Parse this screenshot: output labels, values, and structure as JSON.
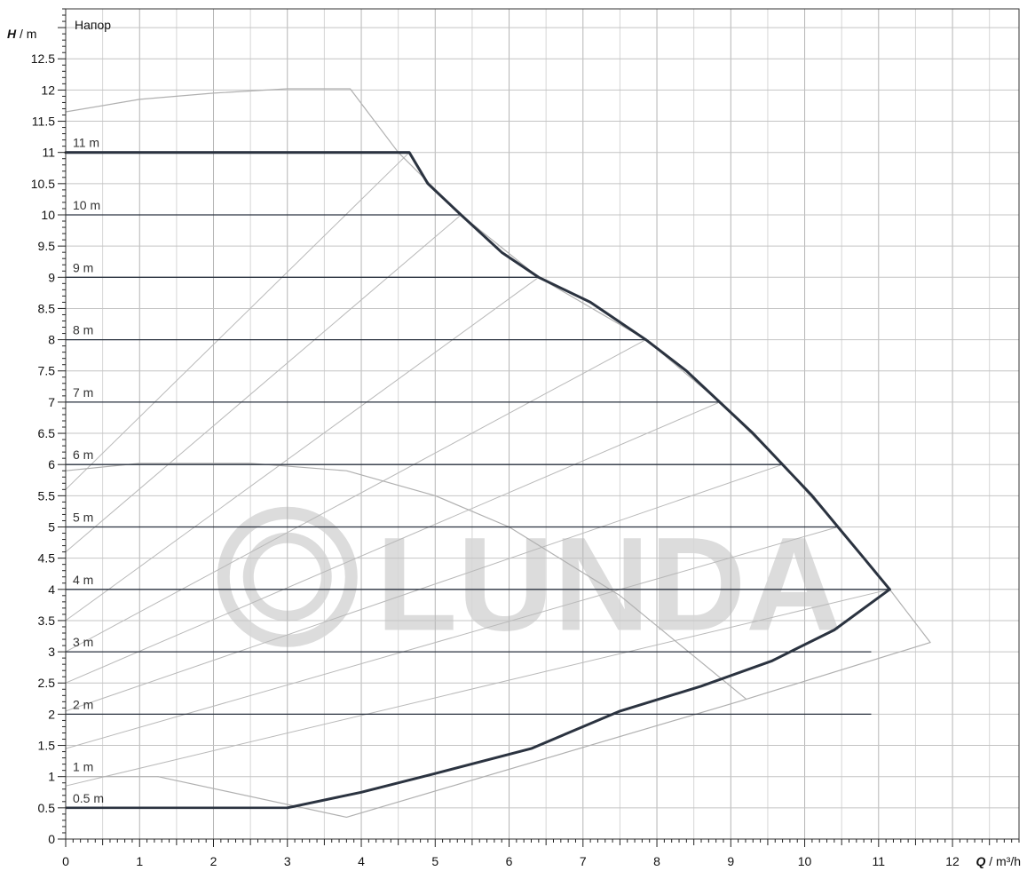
{
  "chart_data": {
    "type": "line",
    "title": "Напор",
    "ylabel_var": "H",
    "ylabel_unit": "/ m",
    "xlabel_var": "Q",
    "xlabel_unit": "/ m³/h",
    "xlim": [
      0,
      12.9
    ],
    "ylim": [
      0,
      13.3
    ],
    "x_ticks": [
      0,
      1,
      2,
      3,
      4,
      5,
      6,
      7,
      8,
      9,
      10,
      11,
      12
    ],
    "y_ticks": [
      0,
      0.5,
      1,
      1.5,
      2,
      2.5,
      3,
      3.5,
      4,
      4.5,
      5,
      5.5,
      6,
      6.5,
      7,
      7.5,
      8,
      8.5,
      9,
      9.5,
      10,
      10.5,
      11,
      11.5,
      12,
      12.5
    ],
    "y_tick_labels": [
      "0",
      "0.5",
      "1",
      "1.5",
      "2",
      "2.5",
      "3",
      "3.5",
      "4",
      "4.5",
      "5",
      "5.5",
      "6",
      "6.5",
      "7",
      "7.5",
      "8",
      "8.5",
      "9",
      "9.5",
      "10",
      "10.5",
      "11",
      "11.5",
      "12",
      "12.5"
    ],
    "grid": true,
    "watermark": "LUNDA",
    "constant_head_curves": [
      {
        "label": "0.5 m",
        "h": 0.5,
        "q_end": 3.0
      },
      {
        "label": "1 m",
        "h": 1.0,
        "q_end": 0
      },
      {
        "label": "2 m",
        "h": 2.0,
        "q_end": 10.9
      },
      {
        "label": "3 m",
        "h": 3.0,
        "q_end": 10.9
      },
      {
        "label": "4 m",
        "h": 4.0,
        "q_end": 11.15
      },
      {
        "label": "5 m",
        "h": 5.0,
        "q_end": 10.45
      },
      {
        "label": "6 m",
        "h": 6.0,
        "q_end": 9.7
      },
      {
        "label": "7 m",
        "h": 7.0,
        "q_end": 8.85
      },
      {
        "label": "8 m",
        "h": 8.0,
        "q_end": 7.85
      },
      {
        "label": "9 m",
        "h": 9.0,
        "q_end": 6.4
      },
      {
        "label": "10 m",
        "h": 10.0,
        "q_end": 5.35
      },
      {
        "label": "11 m",
        "h": 11.0,
        "q_end": 4.65
      }
    ],
    "max_curve": {
      "x": [
        0,
        4.65,
        4.9,
        5.35,
        5.9,
        6.4,
        7.1,
        7.85,
        8.4,
        8.85,
        9.3,
        9.7,
        10.1,
        10.45,
        10.8,
        11.15
      ],
      "y": [
        11.0,
        11.0,
        10.5,
        10.0,
        9.4,
        9.0,
        8.6,
        8.0,
        7.5,
        7.0,
        6.5,
        6.0,
        5.5,
        5.0,
        4.5,
        4.0
      ]
    },
    "min_curve": {
      "x": [
        11.15,
        10.4,
        9.55,
        8.6,
        7.5,
        6.3,
        5.0,
        4.0,
        3.0
      ],
      "y": [
        4.0,
        3.35,
        2.85,
        2.45,
        2.05,
        1.45,
        1.05,
        0.75,
        0.5
      ]
    },
    "max_efficiency_boundary": {
      "x": [
        0,
        1.0,
        2.0,
        3.0,
        3.85,
        4.5,
        5.35,
        6.4,
        7.85,
        8.85,
        9.7,
        10.45,
        11.15,
        11.7,
        9.1,
        3.8,
        1.25
      ],
      "y": [
        11.65,
        11.85,
        11.95,
        12.02,
        12.02,
        11.0,
        10.0,
        9.0,
        8.0,
        7.0,
        6.0,
        5.0,
        4.0,
        3.15,
        2.2,
        0.35,
        1.0
      ]
    },
    "min_efficiency_boundary": {
      "x": [
        0,
        1.0,
        2.5,
        3.8,
        5.0,
        6.0,
        7.5,
        9.2
      ],
      "y": [
        5.9,
        6.02,
        6.02,
        5.9,
        5.5,
        5.0,
        3.9,
        2.25
      ]
    },
    "system_lines": [
      {
        "x": [
          0,
          4.65
        ],
        "y": [
          5.6,
          11.0
        ]
      },
      {
        "x": [
          0,
          5.35
        ],
        "y": [
          4.6,
          10.0
        ]
      },
      {
        "x": [
          0,
          6.4
        ],
        "y": [
          3.5,
          9.0
        ]
      },
      {
        "x": [
          0,
          7.85
        ],
        "y": [
          3.0,
          8.0
        ]
      },
      {
        "x": [
          0,
          8.85
        ],
        "y": [
          2.5,
          7.0
        ]
      },
      {
        "x": [
          0,
          9.7
        ],
        "y": [
          2.05,
          6.0
        ]
      },
      {
        "x": [
          0,
          10.45
        ],
        "y": [
          1.45,
          5.0
        ]
      },
      {
        "x": [
          0,
          11.15
        ],
        "y": [
          0.85,
          4.0
        ]
      }
    ]
  }
}
